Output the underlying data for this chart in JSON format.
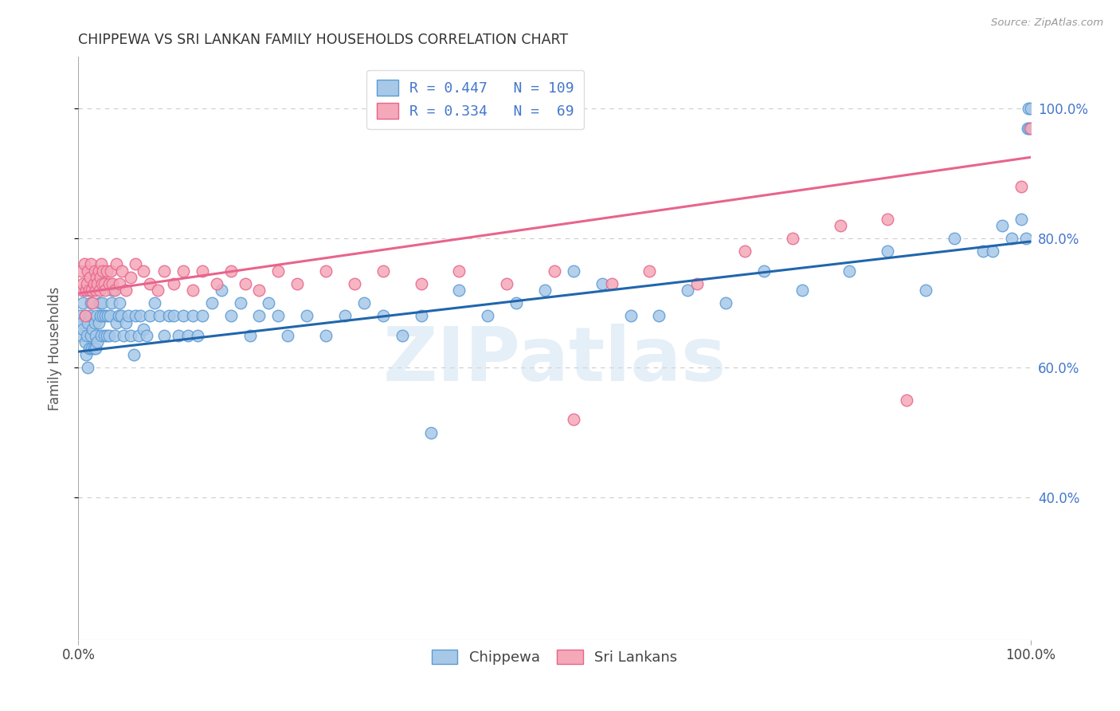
{
  "title": "CHIPPEWA VS SRI LANKAN FAMILY HOUSEHOLDS CORRELATION CHART",
  "source": "Source: ZipAtlas.com",
  "ylabel": "Family Households",
  "legend_entry1": "R = 0.447   N = 109",
  "legend_entry2": "R = 0.334   N =  69",
  "legend_label1": "Chippewa",
  "legend_label2": "Sri Lankans",
  "chippewa_color": "#a8c8e8",
  "chippewa_edge_color": "#5b9bd5",
  "srilanka_color": "#f4a8b8",
  "srilanka_edge_color": "#e8648c",
  "chippewa_line_color": "#2166ac",
  "srilanka_line_color": "#e8648c",
  "background_color": "#ffffff",
  "watermark": "ZIPatlas",
  "xmin": 0.0,
  "xmax": 1.0,
  "ymin": 0.18,
  "ymax": 1.08,
  "yticks": [
    0.4,
    0.6,
    0.8,
    1.0
  ],
  "ytick_labels": [
    "40.0%",
    "60.0%",
    "80.0%",
    "100.0%"
  ],
  "blue_line_x0": 0.0,
  "blue_line_y0": 0.625,
  "blue_line_x1": 1.0,
  "blue_line_y1": 0.795,
  "pink_line_x0": 0.0,
  "pink_line_y0": 0.715,
  "pink_line_x1": 1.0,
  "pink_line_y1": 0.925,
  "chippewa_x": [
    0.002,
    0.003,
    0.004,
    0.005,
    0.005,
    0.006,
    0.007,
    0.007,
    0.008,
    0.009,
    0.01,
    0.01,
    0.011,
    0.012,
    0.013,
    0.013,
    0.014,
    0.015,
    0.015,
    0.016,
    0.017,
    0.018,
    0.018,
    0.019,
    0.02,
    0.021,
    0.022,
    0.023,
    0.024,
    0.025,
    0.026,
    0.027,
    0.028,
    0.03,
    0.031,
    0.032,
    0.033,
    0.035,
    0.036,
    0.038,
    0.04,
    0.042,
    0.043,
    0.045,
    0.047,
    0.05,
    0.052,
    0.055,
    0.058,
    0.06,
    0.063,
    0.065,
    0.068,
    0.072,
    0.075,
    0.08,
    0.085,
    0.09,
    0.095,
    0.1,
    0.105,
    0.11,
    0.115,
    0.12,
    0.125,
    0.13,
    0.14,
    0.15,
    0.16,
    0.17,
    0.18,
    0.19,
    0.2,
    0.21,
    0.22,
    0.24,
    0.26,
    0.28,
    0.3,
    0.32,
    0.34,
    0.36,
    0.37,
    0.4,
    0.43,
    0.46,
    0.49,
    0.52,
    0.55,
    0.58,
    0.61,
    0.64,
    0.68,
    0.72,
    0.76,
    0.81,
    0.85,
    0.89,
    0.92,
    0.95,
    0.96,
    0.97,
    0.98,
    0.99,
    0.995,
    0.997,
    0.998,
    0.999,
    1.0
  ],
  "chippewa_y": [
    0.68,
    0.65,
    0.67,
    0.66,
    0.7,
    0.72,
    0.64,
    0.68,
    0.62,
    0.65,
    0.67,
    0.6,
    0.63,
    0.68,
    0.65,
    0.7,
    0.63,
    0.66,
    0.72,
    0.63,
    0.67,
    0.63,
    0.65,
    0.68,
    0.64,
    0.67,
    0.7,
    0.68,
    0.65,
    0.7,
    0.68,
    0.65,
    0.68,
    0.65,
    0.68,
    0.65,
    0.68,
    0.7,
    0.72,
    0.65,
    0.67,
    0.68,
    0.7,
    0.68,
    0.65,
    0.67,
    0.68,
    0.65,
    0.62,
    0.68,
    0.65,
    0.68,
    0.66,
    0.65,
    0.68,
    0.7,
    0.68,
    0.65,
    0.68,
    0.68,
    0.65,
    0.68,
    0.65,
    0.68,
    0.65,
    0.68,
    0.7,
    0.72,
    0.68,
    0.7,
    0.65,
    0.68,
    0.7,
    0.68,
    0.65,
    0.68,
    0.65,
    0.68,
    0.7,
    0.68,
    0.65,
    0.68,
    0.5,
    0.72,
    0.68,
    0.7,
    0.72,
    0.75,
    0.73,
    0.68,
    0.68,
    0.72,
    0.7,
    0.75,
    0.72,
    0.75,
    0.78,
    0.72,
    0.8,
    0.78,
    0.78,
    0.82,
    0.8,
    0.83,
    0.8,
    0.97,
    1.0,
    0.97,
    1.0
  ],
  "srilanka_x": [
    0.003,
    0.004,
    0.005,
    0.006,
    0.007,
    0.008,
    0.009,
    0.01,
    0.011,
    0.012,
    0.013,
    0.014,
    0.015,
    0.016,
    0.017,
    0.018,
    0.019,
    0.02,
    0.021,
    0.022,
    0.023,
    0.024,
    0.025,
    0.026,
    0.027,
    0.028,
    0.03,
    0.032,
    0.034,
    0.036,
    0.038,
    0.04,
    0.043,
    0.046,
    0.05,
    0.055,
    0.06,
    0.068,
    0.075,
    0.083,
    0.09,
    0.1,
    0.11,
    0.12,
    0.13,
    0.145,
    0.16,
    0.175,
    0.19,
    0.21,
    0.23,
    0.26,
    0.29,
    0.32,
    0.36,
    0.4,
    0.45,
    0.5,
    0.52,
    0.56,
    0.6,
    0.65,
    0.7,
    0.75,
    0.8,
    0.85,
    0.87,
    0.99,
    1.0
  ],
  "srilanka_y": [
    0.75,
    0.72,
    0.73,
    0.76,
    0.68,
    0.72,
    0.73,
    0.75,
    0.72,
    0.74,
    0.76,
    0.72,
    0.7,
    0.73,
    0.75,
    0.72,
    0.74,
    0.73,
    0.75,
    0.72,
    0.74,
    0.76,
    0.73,
    0.75,
    0.73,
    0.72,
    0.75,
    0.73,
    0.75,
    0.73,
    0.72,
    0.76,
    0.73,
    0.75,
    0.72,
    0.74,
    0.76,
    0.75,
    0.73,
    0.72,
    0.75,
    0.73,
    0.75,
    0.72,
    0.75,
    0.73,
    0.75,
    0.73,
    0.72,
    0.75,
    0.73,
    0.75,
    0.73,
    0.75,
    0.73,
    0.75,
    0.73,
    0.75,
    0.52,
    0.73,
    0.75,
    0.73,
    0.78,
    0.8,
    0.82,
    0.83,
    0.55,
    0.88,
    0.97
  ]
}
